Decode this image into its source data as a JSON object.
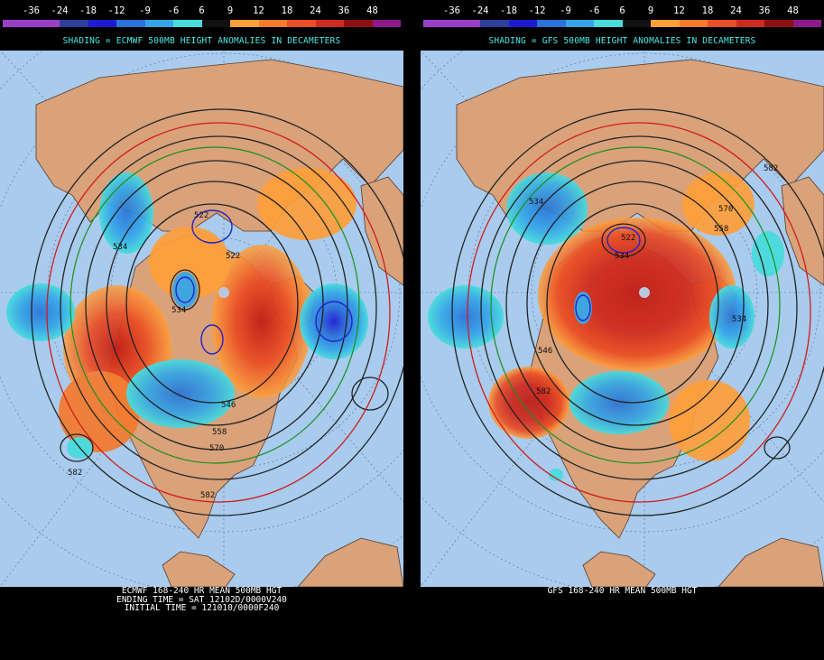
{
  "colorbar": {
    "labels": [
      "-36",
      "-24",
      "-18",
      "-12",
      "-9",
      "-6",
      "6",
      "9",
      "12",
      "18",
      "24",
      "36",
      "48"
    ],
    "colors": [
      "#9b3fc8",
      "#2d3f9a",
      "#1b1bd3",
      "#2a73d8",
      "#34a6e8",
      "#46dcdc",
      "#111111",
      "#ff9f3a",
      "#f57a2c",
      "#ea4e24",
      "#cf2a1e",
      "#8e1010",
      "#8c1a8c"
    ]
  },
  "left": {
    "title": "SHADING = ECMWF 500MB HEIGHT ANOMALIES IN DECAMETERS",
    "footer": [
      "ECMWF 168-240 HR MEAN 500MB HGT",
      "ENDING TIME = SAT 12102D/0000V240",
      "INITIAL TIME = 121010/0000F240"
    ],
    "contour_labels": [
      "522",
      "522",
      "534",
      "546",
      "558",
      "570",
      "582",
      "582",
      "534"
    ]
  },
  "right": {
    "title": "SHADING = GFS 500MB HEIGHT ANOMALIES IN DECAMETERS",
    "footer": [
      "GFS 168-240 HR MEAN 500MB HGT"
    ],
    "contour_labels": [
      "522",
      "534",
      "546",
      "558",
      "570",
      "582",
      "582",
      "534",
      "534"
    ]
  },
  "colors": {
    "ocean": "#a8cbee",
    "land": "#d9a27a",
    "warm_anomaly": "#ea4e24",
    "cold_anomaly": "#34a6e8"
  }
}
